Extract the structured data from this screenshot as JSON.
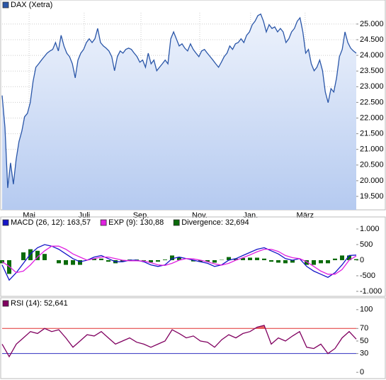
{
  "chart_data": [
    {
      "type": "area",
      "series": [
        {
          "name": "DAX (Xetra)",
          "color": "#2a56a8",
          "values": [
            22720,
            21700,
            19770,
            20570,
            19890,
            20680,
            21250,
            21580,
            22040,
            22150,
            22490,
            23170,
            23620,
            23730,
            23850,
            23960,
            24070,
            24140,
            24190,
            24410,
            24140,
            24640,
            24300,
            24070,
            23960,
            23730,
            23280,
            23850,
            24070,
            24190,
            24410,
            24530,
            24410,
            24530,
            24860,
            24410,
            24300,
            24230,
            24140,
            23960,
            23510,
            23960,
            24140,
            24070,
            24190,
            24230,
            24190,
            24070,
            23960,
            23780,
            23850,
            23620,
            24070,
            23730,
            23850,
            23510,
            23620,
            23730,
            23850,
            23730,
            24530,
            24750,
            24530,
            24300,
            24370,
            24230,
            24140,
            24370,
            24190,
            24070,
            23960,
            24140,
            24190,
            24070,
            23960,
            23850,
            23730,
            23620,
            23780,
            23960,
            24070,
            24300,
            24190,
            24370,
            24410,
            24530,
            24410,
            24640,
            24750,
            24980,
            25090,
            25270,
            25320,
            25090,
            24750,
            24980,
            24860,
            24910,
            24750,
            24860,
            24750,
            24410,
            24530,
            24750,
            24860,
            25090,
            25200,
            24750,
            24070,
            24190,
            23730,
            23510,
            23620,
            23850,
            23510,
            22830,
            22490,
            22940,
            22830,
            23280,
            23960,
            24190,
            24750,
            24410,
            24230,
            24140,
            24070
          ]
        }
      ],
      "xlim": [
        0,
        126
      ],
      "xticks": [
        {
          "value": 9.6,
          "label": "Mai"
        },
        {
          "value": 29.2,
          "label": "Juli"
        },
        {
          "value": 49.4,
          "label": "Sep."
        },
        {
          "value": 70.3,
          "label": "Nov."
        },
        {
          "value": 88.4,
          "label": "Jan."
        },
        {
          "value": 107.8,
          "label": "März"
        }
      ],
      "ylim": [
        19070,
        25360
      ],
      "yticks": [
        {
          "value": 19500,
          "label": "19.500"
        },
        {
          "value": 20000,
          "label": "20.000"
        },
        {
          "value": 20500,
          "label": "20.500"
        },
        {
          "value": 21000,
          "label": "21.000"
        },
        {
          "value": 21500,
          "label": "21.500"
        },
        {
          "value": 22000,
          "label": "22.000"
        },
        {
          "value": 22500,
          "label": "22.500"
        },
        {
          "value": 23000,
          "label": "23.000"
        },
        {
          "value": 23500,
          "label": "23.500"
        },
        {
          "value": 24000,
          "label": "24.000"
        },
        {
          "value": 24500,
          "label": "24.500"
        },
        {
          "value": 25000,
          "label": "25.000"
        }
      ],
      "grid": true
    },
    {
      "type": "macd",
      "series": [
        {
          "name": "MACD (26, 12): 163,57",
          "color": "#1414c8",
          "values": [
            -150,
            -640,
            -400,
            -100,
            200,
            400,
            500,
            450,
            350,
            200,
            50,
            -50,
            0,
            100,
            150,
            50,
            -50,
            -50,
            0,
            0,
            -50,
            -150,
            -200,
            -150,
            50,
            100,
            50,
            0,
            -50,
            -100,
            -200,
            -150,
            0,
            50,
            150,
            250,
            350,
            400,
            300,
            200,
            50,
            0,
            50,
            -200,
            -350,
            -450,
            -550,
            -400,
            -150,
            150,
            164
          ]
        },
        {
          "name": "EXP (9): 130,88",
          "color": "#e020e0",
          "values": [
            -50,
            -200,
            -400,
            -350,
            -150,
            100,
            300,
            450,
            450,
            350,
            200,
            100,
            0,
            50,
            100,
            100,
            50,
            0,
            -20,
            -20,
            -30,
            -80,
            -150,
            -170,
            -100,
            0,
            50,
            40,
            0,
            -50,
            -120,
            -160,
            -100,
            0,
            80,
            170,
            270,
            350,
            350,
            280,
            150,
            80,
            50,
            -50,
            -200,
            -350,
            -450,
            -450,
            -300,
            0,
            131
          ]
        },
        {
          "name": "Divergence: 32,694",
          "color": "#0a6a0a",
          "type": "bar",
          "values": [
            -100,
            -440,
            0,
            250,
            350,
            300,
            200,
            0,
            -100,
            -150,
            -150,
            -150,
            0,
            50,
            50,
            -50,
            -100,
            -50,
            20,
            20,
            -20,
            -70,
            -50,
            20,
            150,
            100,
            0,
            -40,
            -50,
            -50,
            -80,
            10,
            100,
            50,
            70,
            80,
            80,
            50,
            -50,
            -80,
            -100,
            -80,
            0,
            -150,
            -150,
            -100,
            -100,
            50,
            150,
            150,
            33
          ]
        }
      ],
      "xlim": [
        0,
        50
      ],
      "ylim": [
        -1160,
        1295
      ],
      "yticks": [
        {
          "value": -1000,
          "label": "-1.000"
        },
        -500,
        0,
        500,
        {
          "value": 1000,
          "label": "1.000"
        }
      ]
    },
    {
      "type": "line",
      "series": [
        {
          "name": "RSI (14): 52,641",
          "color": "#800060",
          "values": [
            45,
            25,
            45,
            55,
            65,
            62,
            70,
            65,
            68,
            55,
            40,
            50,
            60,
            58,
            65,
            55,
            45,
            50,
            55,
            48,
            45,
            40,
            45,
            50,
            68,
            62,
            55,
            58,
            50,
            48,
            40,
            52,
            60,
            55,
            62,
            65,
            72,
            75,
            45,
            55,
            50,
            58,
            65,
            40,
            38,
            45,
            30,
            38,
            55,
            65,
            53
          ]
        }
      ],
      "xlim": [
        0,
        50
      ],
      "ylim": [
        -10,
        119
      ],
      "yticks": [
        0,
        30,
        50,
        70,
        100
      ],
      "ref_lines": [
        {
          "value": 70,
          "color": "#e03030"
        },
        {
          "value": 30,
          "color": "#3030c0"
        }
      ]
    }
  ]
}
